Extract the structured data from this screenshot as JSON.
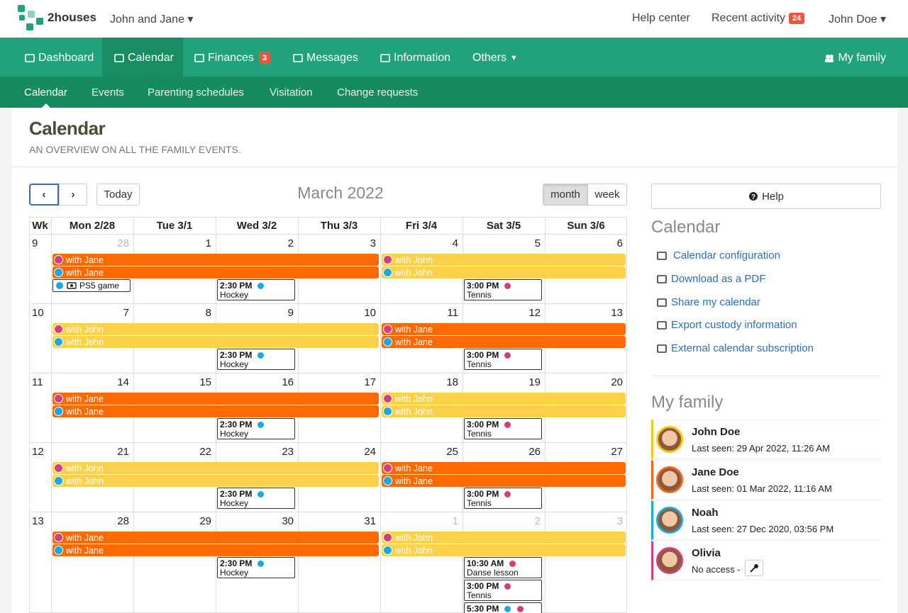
{
  "header": {
    "brand": "2houses",
    "family": "John and Jane",
    "help": "Help center",
    "recent": "Recent activity",
    "recent_badge": "24",
    "user": "John Doe"
  },
  "nav": {
    "items": [
      "Dashboard",
      "Calendar",
      "Finances",
      "Messages",
      "Information",
      "Others"
    ],
    "finances_badge": "3",
    "my_family": "My family"
  },
  "subnav": [
    "Calendar",
    "Events",
    "Parenting schedules",
    "Visitation",
    "Change requests"
  ],
  "page": {
    "title": "Calendar",
    "subtitle": "AN OVERVIEW ON ALL THE FAMILY EVENTS."
  },
  "calendar": {
    "today": "Today",
    "title": "March 2022",
    "views": [
      "month",
      "week"
    ],
    "headers": [
      "Wk",
      "Mon 2/28",
      "Tue 3/1",
      "Wed 3/2",
      "Thu 3/3",
      "Fri 3/4",
      "Sat 3/5",
      "Sun 3/6"
    ],
    "weeks": [
      {
        "number": "9",
        "early": [
          {
            "label": "with Jane",
            "color": "#fd6a02",
            "dot": "#d63e7a"
          },
          {
            "label": "with Jane",
            "color": "#fd6a02",
            "dot": "#1ba7e0"
          }
        ],
        "late": [
          {
            "label": "with John",
            "color": "#fdd24a",
            "dot": "#d63e7a"
          },
          {
            "label": "with John",
            "color": "#fdd24a",
            "dot": "#1ba7e0"
          }
        ],
        "days": [
          {
            "date": "28",
            "muted": true,
            "events": [
              {
                "title": "PS5 game",
                "icon": true,
                "dots": [
                  "#1ba7e0"
                ]
              }
            ]
          },
          {
            "date": "1",
            "events": []
          },
          {
            "date": "2",
            "events": [
              {
                "time": "2:30 PM",
                "title": "Hockey",
                "dots": [
                  "#1ba7e0"
                ]
              }
            ]
          },
          {
            "date": "3",
            "events": []
          },
          {
            "date": "4",
            "events": []
          },
          {
            "date": "5",
            "events": [
              {
                "time": "3:00 PM",
                "title": "Tennis",
                "dots": [
                  "#d63e7a"
                ]
              }
            ]
          },
          {
            "date": "6",
            "events": []
          }
        ]
      },
      {
        "number": "10",
        "early": [
          {
            "label": "with John",
            "color": "#fdd24a",
            "dot": "#d63e7a"
          },
          {
            "label": "with John",
            "color": "#fdd24a",
            "dot": "#1ba7e0"
          }
        ],
        "late": [
          {
            "label": "with Jane",
            "color": "#fd6a02",
            "dot": "#d63e7a"
          },
          {
            "label": "with Jane",
            "color": "#fd6a02",
            "dot": "#1ba7e0"
          }
        ],
        "days": [
          {
            "date": "7",
            "events": []
          },
          {
            "date": "8",
            "events": []
          },
          {
            "date": "9",
            "events": [
              {
                "time": "2:30 PM",
                "title": "Hockey",
                "dots": [
                  "#1ba7e0"
                ]
              }
            ]
          },
          {
            "date": "10",
            "events": []
          },
          {
            "date": "11",
            "events": []
          },
          {
            "date": "12",
            "events": [
              {
                "time": "3:00 PM",
                "title": "Tennis",
                "dots": [
                  "#d63e7a"
                ]
              }
            ]
          },
          {
            "date": "13",
            "events": []
          }
        ]
      },
      {
        "number": "11",
        "early": [
          {
            "label": "with Jane",
            "color": "#fd6a02",
            "dot": "#d63e7a"
          },
          {
            "label": "with Jane",
            "color": "#fd6a02",
            "dot": "#1ba7e0"
          }
        ],
        "late": [
          {
            "label": "with John",
            "color": "#fdd24a",
            "dot": "#d63e7a"
          },
          {
            "label": "with John",
            "color": "#fdd24a",
            "dot": "#1ba7e0"
          }
        ],
        "days": [
          {
            "date": "14",
            "events": []
          },
          {
            "date": "15",
            "events": []
          },
          {
            "date": "16",
            "events": [
              {
                "time": "2:30 PM",
                "title": "Hockey",
                "dots": [
                  "#1ba7e0"
                ]
              }
            ]
          },
          {
            "date": "17",
            "events": []
          },
          {
            "date": "18",
            "events": []
          },
          {
            "date": "19",
            "events": [
              {
                "time": "3:00 PM",
                "title": "Tennis",
                "dots": [
                  "#d63e7a"
                ]
              }
            ]
          },
          {
            "date": "20",
            "events": []
          }
        ]
      },
      {
        "number": "12",
        "early": [
          {
            "label": "with John",
            "color": "#fdd24a",
            "dot": "#d63e7a"
          },
          {
            "label": "with John",
            "color": "#fdd24a",
            "dot": "#1ba7e0"
          }
        ],
        "late": [
          {
            "label": "with Jane",
            "color": "#fd6a02",
            "dot": "#d63e7a"
          },
          {
            "label": "with Jane",
            "color": "#fd6a02",
            "dot": "#1ba7e0"
          }
        ],
        "days": [
          {
            "date": "21",
            "events": []
          },
          {
            "date": "22",
            "events": []
          },
          {
            "date": "23",
            "events": [
              {
                "time": "2:30 PM",
                "title": "Hockey",
                "dots": [
                  "#1ba7e0"
                ]
              }
            ]
          },
          {
            "date": "24",
            "events": []
          },
          {
            "date": "25",
            "events": []
          },
          {
            "date": "26",
            "events": [
              {
                "time": "3:00 PM",
                "title": "Tennis",
                "dots": [
                  "#d63e7a"
                ]
              }
            ]
          },
          {
            "date": "27",
            "events": []
          }
        ]
      },
      {
        "number": "13",
        "early": [
          {
            "label": "with Jane",
            "color": "#fd6a02",
            "dot": "#d63e7a"
          },
          {
            "label": "with Jane",
            "color": "#fd6a02",
            "dot": "#1ba7e0"
          }
        ],
        "late": [
          {
            "label": "with John",
            "color": "#fdd24a",
            "dot": "#d63e7a"
          },
          {
            "label": "with John",
            "color": "#fdd24a",
            "dot": "#1ba7e0"
          }
        ],
        "days": [
          {
            "date": "28",
            "events": []
          },
          {
            "date": "29",
            "events": []
          },
          {
            "date": "30",
            "events": [
              {
                "time": "2:30 PM",
                "title": "Hockey",
                "dots": [
                  "#1ba7e0"
                ]
              }
            ]
          },
          {
            "date": "31",
            "events": []
          },
          {
            "date": "1",
            "muted": true,
            "events": []
          },
          {
            "date": "2",
            "muted": true,
            "events": [
              {
                "time": "10:30 AM",
                "title": "Danse lesson",
                "dots": [
                  "#d63e7a"
                ]
              },
              {
                "time": "3:00 PM",
                "title": "Tennis",
                "dots": [
                  "#d63e7a"
                ]
              },
              {
                "time": "5:30 PM",
                "dots": [
                  "#1ba7e0",
                  "#d63e7a"
                ]
              }
            ]
          },
          {
            "date": "3",
            "muted": true,
            "events": []
          }
        ]
      }
    ]
  },
  "sidebar": {
    "help": "Help",
    "calendar_heading": "Calendar",
    "links": [
      "Calendar configuration",
      "Download as a PDF",
      "Share my calendar",
      "Export custody information",
      "External calendar subscription"
    ],
    "family_heading": "My family",
    "members": [
      {
        "name": "John Doe",
        "status": "Last seen: 29 Apr 2022, 11:26 AM",
        "color": "#f5c518"
      },
      {
        "name": "Jane Doe",
        "status": "Last seen: 01 Mar 2022, 11:16 AM",
        "color": "#f26522"
      },
      {
        "name": "Noah",
        "status": "Last seen: 27 Dec 2020, 03:56 PM",
        "color": "#1ba7e0"
      },
      {
        "name": "Olivia",
        "status": "No access -",
        "color": "#d63e7a",
        "key": true
      }
    ]
  }
}
